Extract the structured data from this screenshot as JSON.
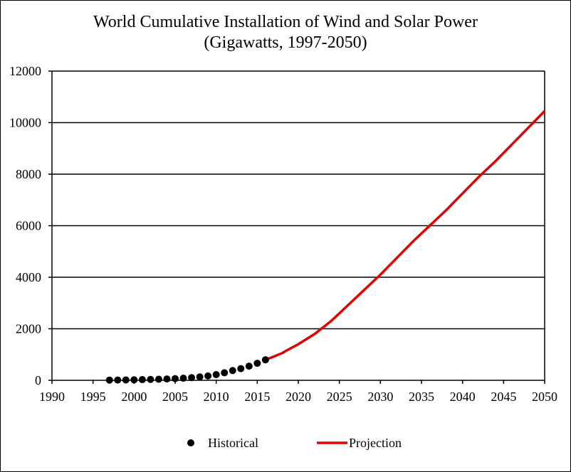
{
  "chart_data": {
    "type": "line",
    "title": "World Cumulative Installation of Wind and Solar Power",
    "subtitle": "(Gigawatts, 1997-2050)",
    "xlabel": "",
    "ylabel": "",
    "xlim": [
      1990,
      2050
    ],
    "ylim": [
      0,
      12000
    ],
    "x_ticks": [
      1990,
      1995,
      2000,
      2005,
      2010,
      2015,
      2020,
      2025,
      2030,
      2035,
      2040,
      2045,
      2050
    ],
    "y_ticks": [
      0,
      2000,
      4000,
      6000,
      8000,
      10000,
      12000
    ],
    "grid": "horizontal",
    "legend_position": "bottom",
    "series": [
      {
        "name": "Historical",
        "style": "markers",
        "color": "#000000",
        "x": [
          1997,
          1998,
          1999,
          2000,
          2001,
          2002,
          2003,
          2004,
          2005,
          2006,
          2007,
          2008,
          2009,
          2010,
          2011,
          2012,
          2013,
          2014,
          2015,
          2016
        ],
        "values": [
          8,
          11,
          15,
          19,
          26,
          34,
          42,
          51,
          66,
          82,
          104,
          132,
          169,
          221,
          292,
          378,
          453,
          549,
          660,
          795
        ]
      },
      {
        "name": "Projection",
        "style": "line",
        "color": "#e30000",
        "x": [
          2016,
          2017,
          2018,
          2019,
          2020,
          2022,
          2024,
          2026,
          2028,
          2030,
          2032,
          2034,
          2036,
          2038,
          2040,
          2042,
          2044,
          2046,
          2048,
          2050
        ],
        "values": [
          795,
          920,
          1050,
          1230,
          1400,
          1800,
          2300,
          2900,
          3500,
          4100,
          4750,
          5400,
          6000,
          6600,
          7250,
          7900,
          8500,
          9150,
          9800,
          10450
        ]
      }
    ]
  }
}
